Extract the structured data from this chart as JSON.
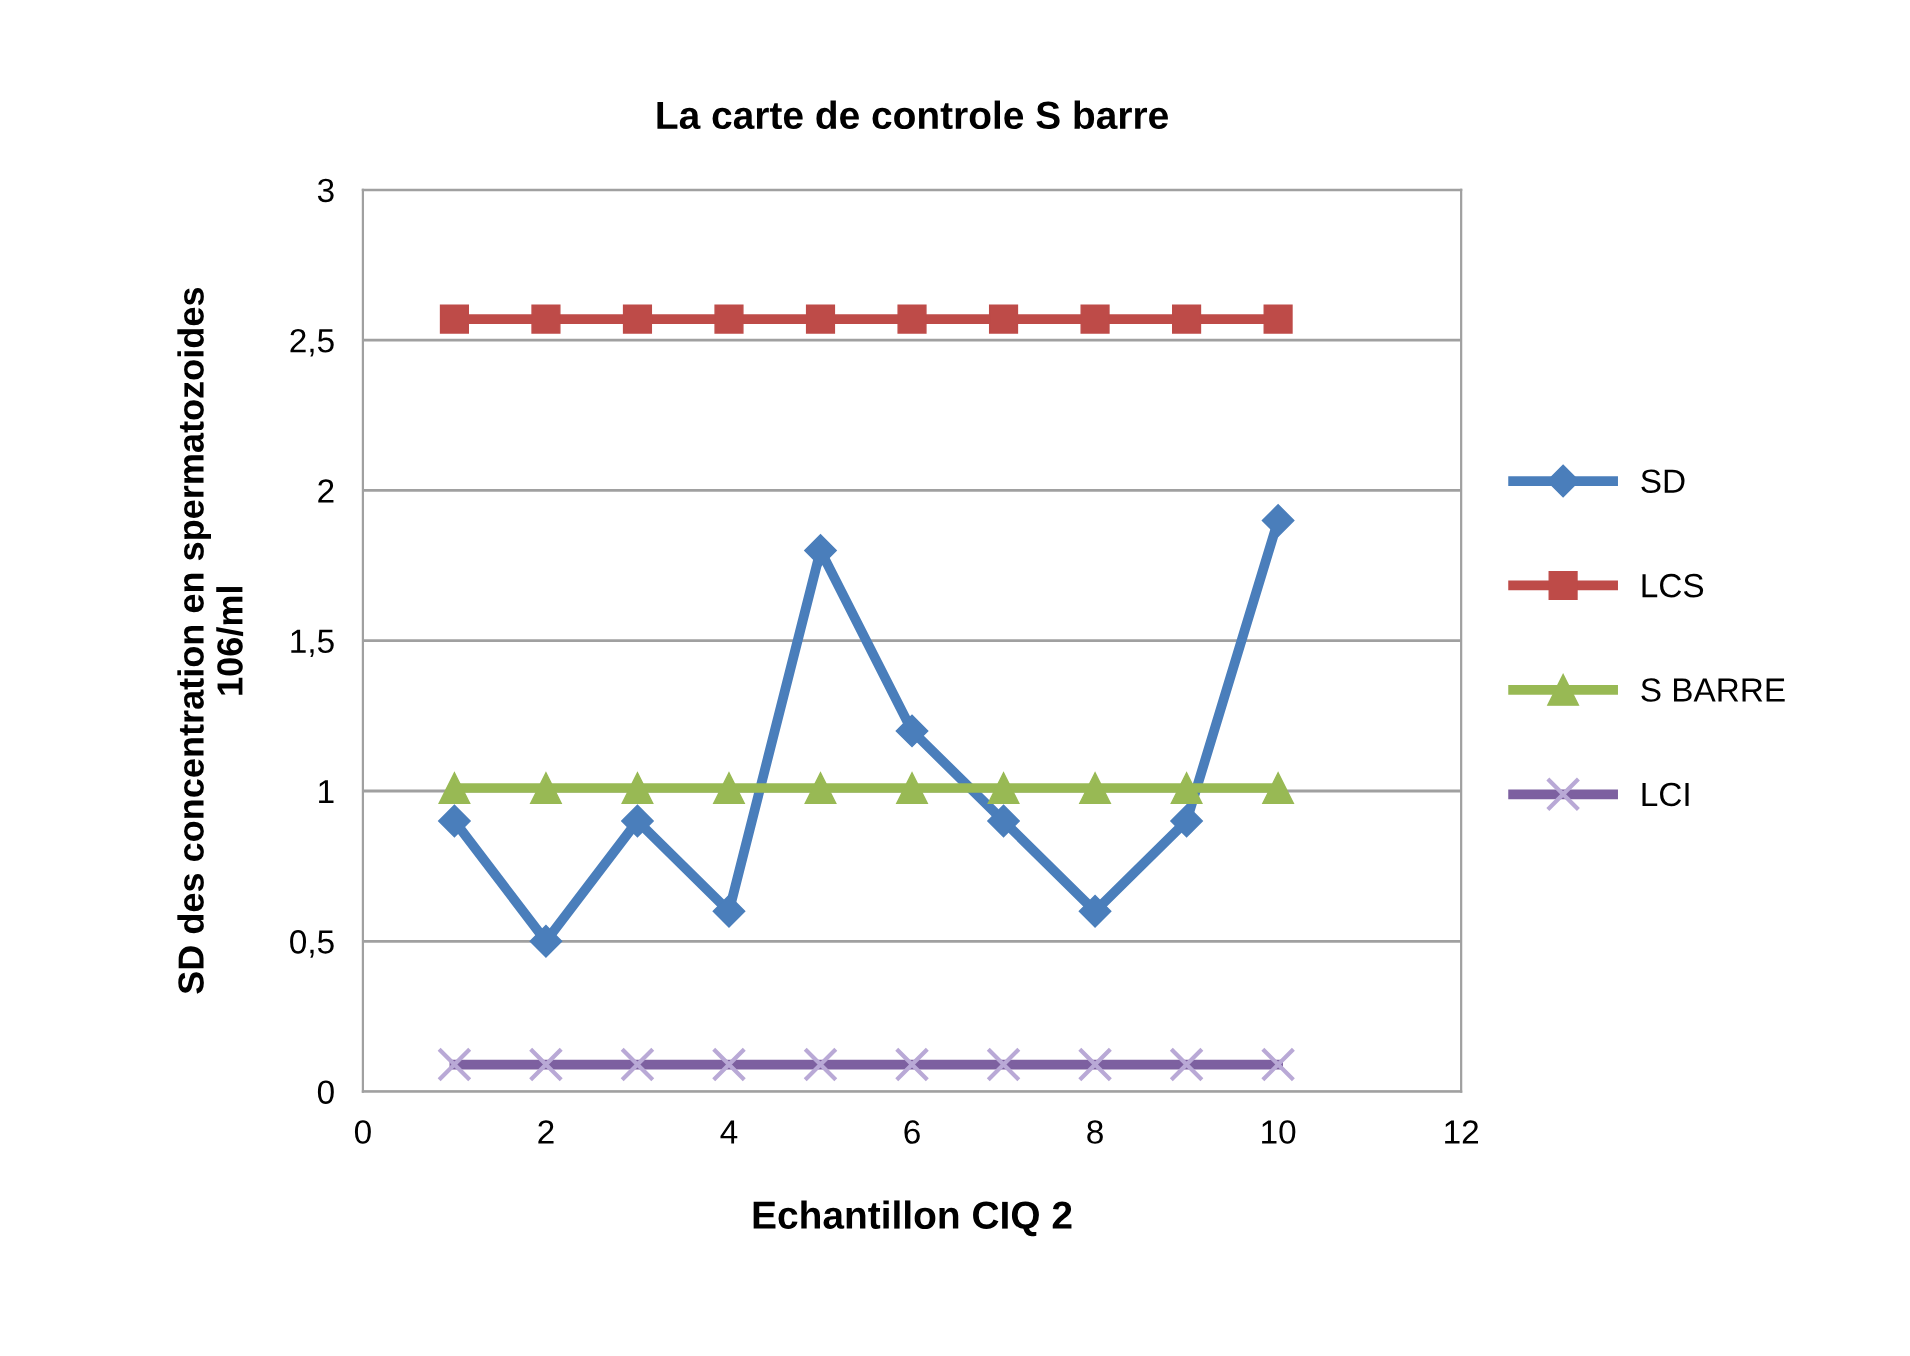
{
  "chart_data": {
    "type": "line",
    "title": "La carte de controle S barre",
    "xlabel": "Echantillon CIQ 2",
    "ylabel": "SD des concentration en spermatozoides\n106/ml",
    "x": [
      1,
      2,
      3,
      4,
      5,
      6,
      7,
      8,
      9,
      10
    ],
    "series": [
      {
        "name": "SD",
        "color": "#4a7ebb",
        "marker": "diamond",
        "values": [
          0.9,
          0.5,
          0.9,
          0.6,
          1.8,
          1.2,
          0.9,
          0.6,
          0.9,
          1.9
        ]
      },
      {
        "name": "LCS",
        "color": "#be4b48",
        "marker": "square",
        "values": [
          2.57,
          2.57,
          2.57,
          2.57,
          2.57,
          2.57,
          2.57,
          2.57,
          2.57,
          2.57
        ]
      },
      {
        "name": "S BARRE",
        "color": "#98b954",
        "marker": "triangle",
        "values": [
          1.01,
          1.01,
          1.01,
          1.01,
          1.01,
          1.01,
          1.01,
          1.01,
          1.01,
          1.01
        ]
      },
      {
        "name": "LCI",
        "color": "#7d60a0",
        "marker": "cross",
        "values": [
          0.09,
          0.09,
          0.09,
          0.09,
          0.09,
          0.09,
          0.09,
          0.09,
          0.09,
          0.09
        ]
      }
    ],
    "xlim": [
      0,
      12
    ],
    "xticks": [
      0,
      2,
      4,
      6,
      8,
      10,
      12
    ],
    "ylim": [
      0,
      3
    ],
    "yticks": [
      0,
      {
        "value": 0.5,
        "label": "0,5"
      },
      1,
      {
        "value": 1.5,
        "label": "1,5"
      },
      2,
      {
        "value": 2.5,
        "label": "2,5"
      },
      3
    ],
    "grid": "y",
    "legend": "right",
    "line_style": "solid"
  }
}
